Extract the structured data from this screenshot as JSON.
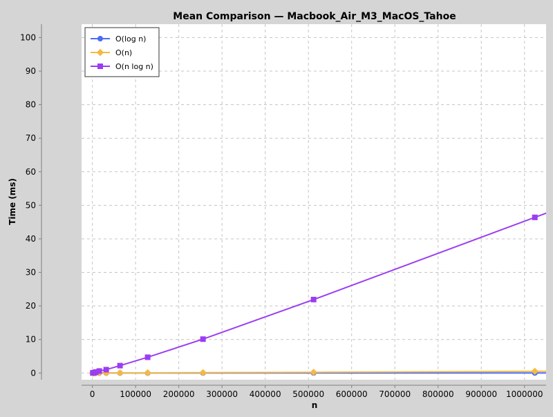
{
  "chart_data": {
    "type": "line",
    "title": "Mean Comparison — Macbook_Air_M3_MacOS_Tahoe",
    "xlabel": "n",
    "ylabel": "Time (ms)",
    "xlim": [
      -25000,
      1050000
    ],
    "ylim": [
      -2,
      104
    ],
    "xticks": [
      0,
      100000,
      200000,
      300000,
      400000,
      500000,
      600000,
      700000,
      800000,
      900000,
      1000000
    ],
    "yticks": [
      0,
      10,
      20,
      30,
      40,
      50,
      60,
      70,
      80,
      90,
      100
    ],
    "grid": true,
    "legend_position": "top-left",
    "x": [
      1000,
      2000,
      4000,
      8000,
      16000,
      32000,
      64000,
      128000,
      256000,
      512000,
      1024000
    ],
    "series": [
      {
        "name": "O(log n)",
        "color": "#4a6cf7",
        "marker": "circle",
        "values": [
          0.001,
          0.001,
          0.001,
          0.001,
          0.001,
          0.001,
          0.001,
          0.001,
          0.001,
          0.001,
          0.001
        ]
      },
      {
        "name": "O(n)",
        "color": "#f5b942",
        "marker": "diamond",
        "values": [
          0.0,
          0.01,
          0.01,
          0.02,
          0.02,
          0.03,
          0.04,
          0.06,
          0.1,
          0.2,
          0.5
        ]
      },
      {
        "name": "O(n log n)",
        "color": "#9b3df2",
        "marker": "square",
        "values": [
          0.02,
          0.05,
          0.1,
          0.3,
          0.6,
          1.0,
          2.2,
          4.7,
          10.1,
          21.9,
          46.4
        ]
      }
    ]
  }
}
